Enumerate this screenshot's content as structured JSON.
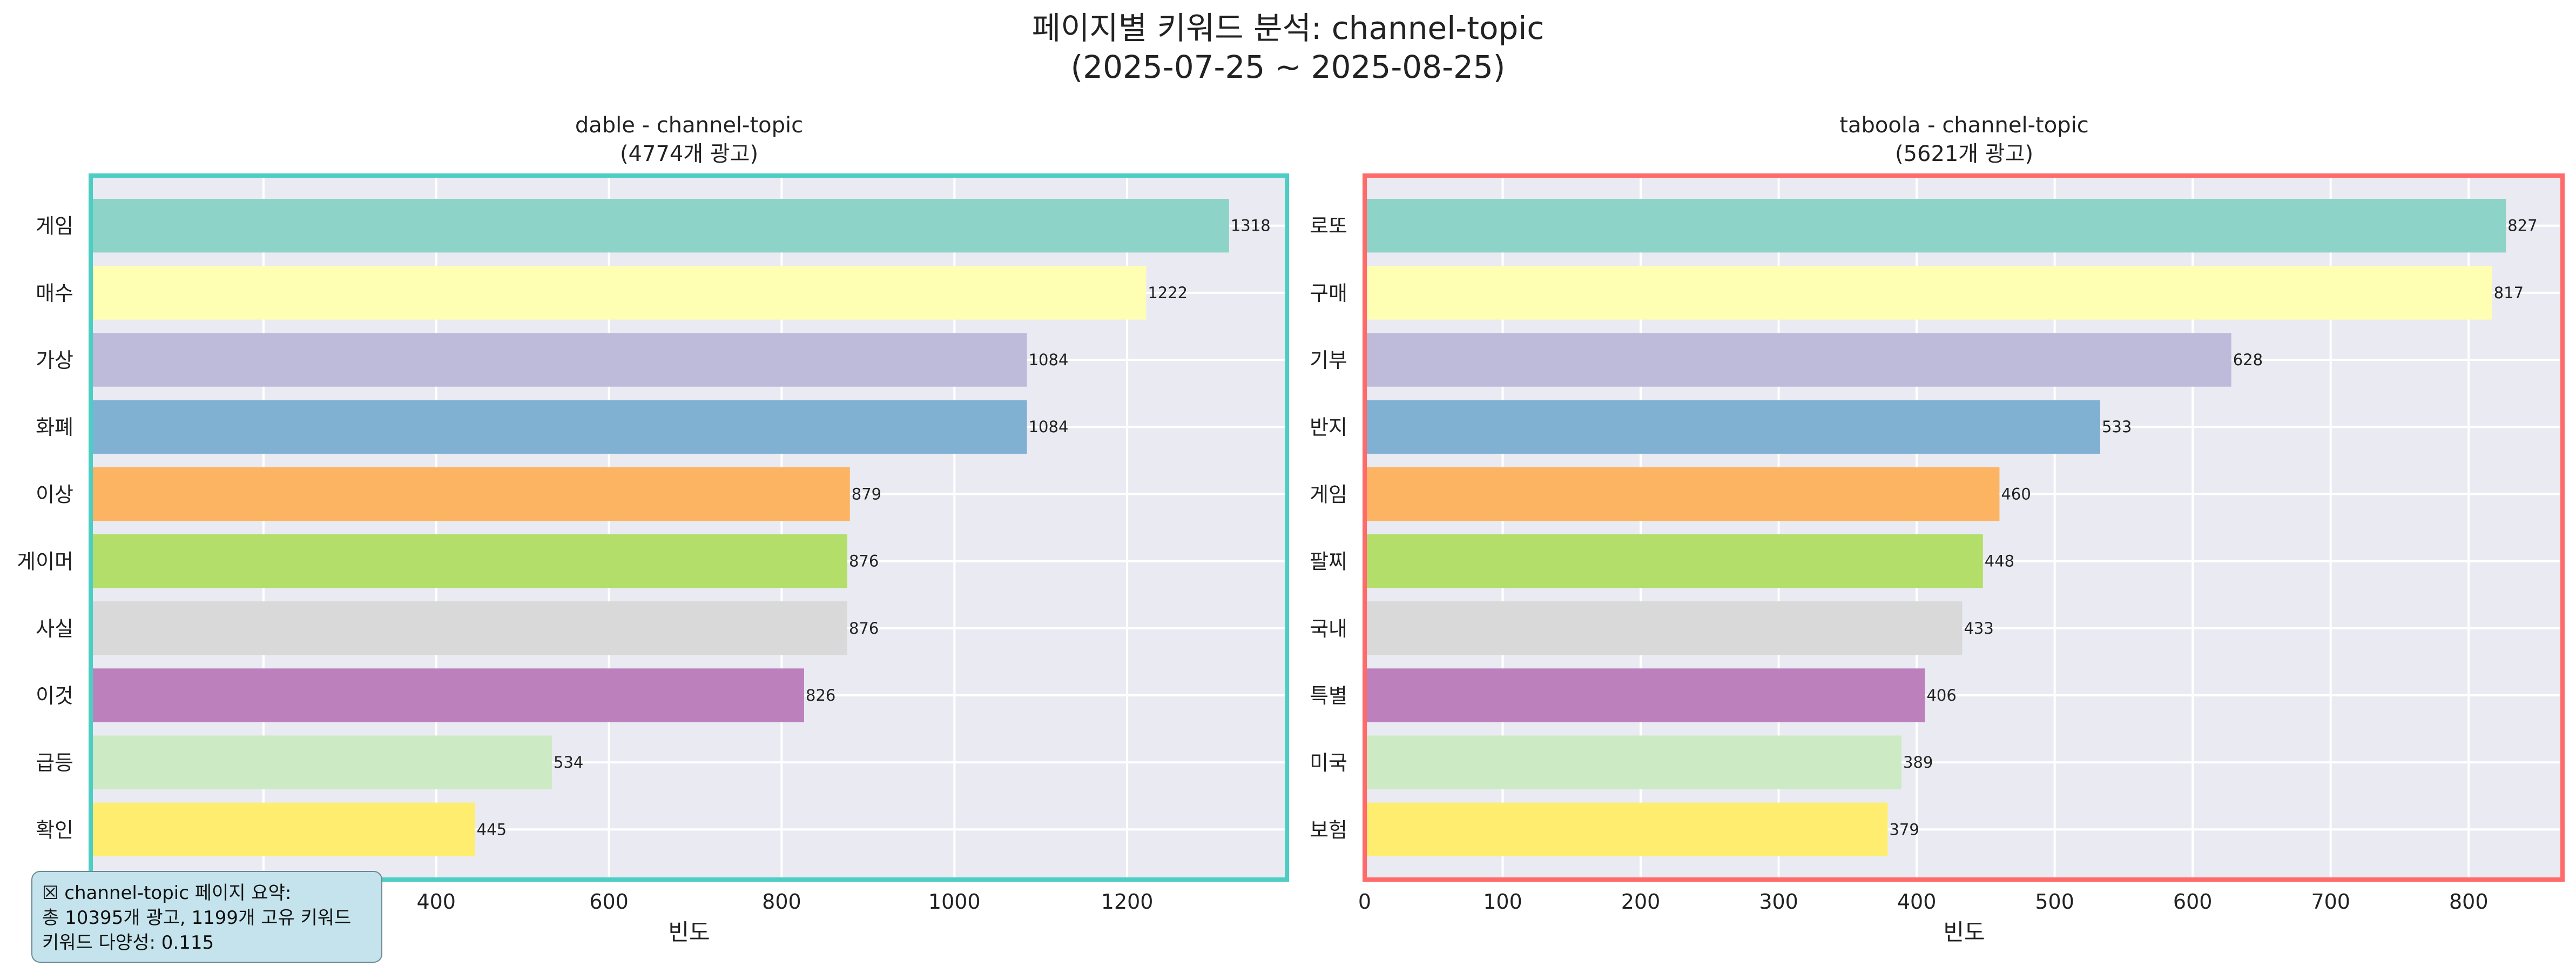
{
  "suptitle": {
    "line1": "페이지별 키워드 분석: channel-topic",
    "line2": "(2025-07-25 ~ 2025-08-25)"
  },
  "summary": {
    "line1": "☒ channel-topic 페이지 요약:",
    "line2": "총 10395개 광고, 1199개 고유 키워드",
    "line3": "키워드 다양성: 0.115"
  },
  "colors": {
    "palette": [
      "#8dd3c7",
      "#ffffb3",
      "#bebada",
      "#80b1d3",
      "#fdb462",
      "#b3de69",
      "#d9d9d9",
      "#bc80bd",
      "#ccebc5",
      "#ffed6f"
    ],
    "background": "#eaeaf2",
    "dable_border": "#4ecdc4",
    "taboola_border": "#ff6b6b"
  },
  "chart_data": [
    {
      "type": "bar",
      "orientation": "horizontal",
      "title": "dable - channel-topic",
      "subtitle": "(4774개 광고)",
      "xlabel": "빈도",
      "categories": [
        "게임",
        "매수",
        "가상",
        "화폐",
        "이상",
        "게이머",
        "사실",
        "이것",
        "급등",
        "확인"
      ],
      "values": [
        1318,
        1222,
        1084,
        1084,
        879,
        876,
        876,
        826,
        534,
        445
      ],
      "xlim": [
        0,
        1385
      ],
      "xticks": [
        0,
        200,
        400,
        600,
        800,
        1000,
        1200
      ],
      "grid": true
    },
    {
      "type": "bar",
      "orientation": "horizontal",
      "title": "taboola - channel-topic",
      "subtitle": "(5621개 광고)",
      "xlabel": "빈도",
      "categories": [
        "로또",
        "구매",
        "기부",
        "반지",
        "게임",
        "팔찌",
        "국내",
        "특별",
        "미국",
        "보험"
      ],
      "values": [
        827,
        817,
        628,
        533,
        460,
        448,
        433,
        406,
        389,
        379
      ],
      "xlim": [
        0,
        868
      ],
      "xticks": [
        0,
        100,
        200,
        300,
        400,
        500,
        600,
        700,
        800
      ],
      "grid": true
    }
  ]
}
